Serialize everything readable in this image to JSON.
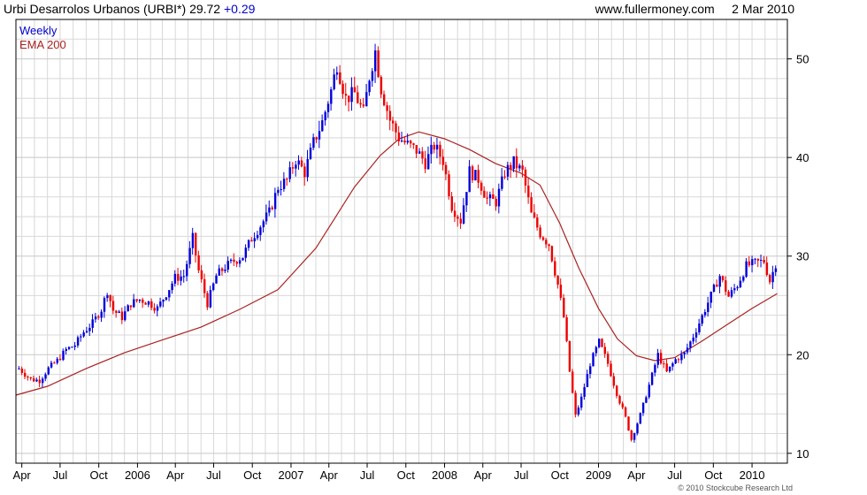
{
  "header": {
    "ticker_label": "Urbi Desarrolos Urbanos (URBI*)",
    "last_price": "29.72",
    "change": "+0.29",
    "source": "www.fullermoney.com",
    "date": "2 Mar 2010"
  },
  "copyright": "© 2010 Stockcube Research Ltd",
  "colors": {
    "up": "#0000dd",
    "down": "#ee0000",
    "ema": "#aa2222",
    "grid": "#d8d8d8",
    "frame": "#000000"
  },
  "chart_data": {
    "type": "line",
    "period": "weekly",
    "y_ticks": [
      10,
      20,
      30,
      40,
      50
    ],
    "ylim": [
      9,
      54
    ],
    "x_ticks": [
      "Apr",
      "Jul",
      "Oct",
      "2006",
      "Apr",
      "Jul",
      "Oct",
      "2007",
      "Apr",
      "Jul",
      "Oct",
      "2008",
      "Apr",
      "Jul",
      "Oct",
      "2009",
      "Apr",
      "Jul",
      "Oct",
      "2010"
    ],
    "x_tick_dates": [
      "2005-04-01",
      "2005-07-01",
      "2005-10-01",
      "2006-01-01",
      "2006-04-01",
      "2006-07-01",
      "2006-10-01",
      "2007-01-01",
      "2007-04-01",
      "2007-07-01",
      "2007-10-01",
      "2008-01-01",
      "2008-04-01",
      "2008-07-01",
      "2008-10-01",
      "2009-01-01",
      "2009-04-01",
      "2009-07-01",
      "2009-10-01",
      "2010-01-01"
    ],
    "xlim": [
      "2005-03-18",
      "2010-03-26"
    ],
    "series": [
      {
        "name": "Weekly",
        "style": "ohlc-bars",
        "points": [
          [
            "2005-03-25",
            18.6
          ],
          [
            "2005-04-22",
            17.5
          ],
          [
            "2005-05-13",
            17.4
          ],
          [
            "2005-06-03",
            18.6
          ],
          [
            "2005-06-24",
            19.4
          ],
          [
            "2005-07-15",
            20.5
          ],
          [
            "2005-08-05",
            21.0
          ],
          [
            "2005-08-26",
            22.3
          ],
          [
            "2005-09-16",
            23.2
          ],
          [
            "2005-10-07",
            24.6
          ],
          [
            "2005-10-21",
            26.5
          ],
          [
            "2005-11-04",
            24.5
          ],
          [
            "2005-11-25",
            23.8
          ],
          [
            "2005-12-16",
            25.2
          ],
          [
            "2006-01-06",
            25.6
          ],
          [
            "2006-01-27",
            25.3
          ],
          [
            "2006-02-17",
            24.7
          ],
          [
            "2006-03-10",
            26.2
          ],
          [
            "2006-03-31",
            27.8
          ],
          [
            "2006-04-21",
            28.0
          ],
          [
            "2006-05-12",
            31.8
          ],
          [
            "2006-05-26",
            28.5
          ],
          [
            "2006-06-16",
            25.2
          ],
          [
            "2006-07-07",
            28.0
          ],
          [
            "2006-07-28",
            28.9
          ],
          [
            "2006-08-18",
            29.5
          ],
          [
            "2006-09-08",
            30.0
          ],
          [
            "2006-09-29",
            31.8
          ],
          [
            "2006-10-20",
            33.1
          ],
          [
            "2006-11-10",
            34.4
          ],
          [
            "2006-12-01",
            37.0
          ],
          [
            "2006-12-22",
            37.7
          ],
          [
            "2007-01-12",
            39.8
          ],
          [
            "2007-02-02",
            38.5
          ],
          [
            "2007-02-23",
            41.5
          ],
          [
            "2007-03-16",
            43.6
          ],
          [
            "2007-04-06",
            46.8
          ],
          [
            "2007-04-20",
            49.5
          ],
          [
            "2007-05-11",
            46.0
          ],
          [
            "2007-06-01",
            46.5
          ],
          [
            "2007-06-22",
            44.5
          ],
          [
            "2007-07-06",
            48.2
          ],
          [
            "2007-07-20",
            50.8
          ],
          [
            "2007-08-03",
            47.0
          ],
          [
            "2007-08-24",
            43.8
          ],
          [
            "2007-09-14",
            42.0
          ],
          [
            "2007-10-05",
            41.3
          ],
          [
            "2007-10-26",
            40.7
          ],
          [
            "2007-11-16",
            39.5
          ],
          [
            "2007-12-07",
            41.2
          ],
          [
            "2007-12-28",
            39.7
          ],
          [
            "2008-01-18",
            35.1
          ],
          [
            "2008-02-08",
            33.6
          ],
          [
            "2008-02-29",
            38.6
          ],
          [
            "2008-03-21",
            37.8
          ],
          [
            "2008-04-11",
            35.8
          ],
          [
            "2008-05-02",
            35.5
          ],
          [
            "2008-05-23",
            38.5
          ],
          [
            "2008-06-13",
            39.5
          ],
          [
            "2008-07-04",
            38.5
          ],
          [
            "2008-07-25",
            34.2
          ],
          [
            "2008-08-15",
            32.3
          ],
          [
            "2008-09-05",
            31.2
          ],
          [
            "2008-09-26",
            27.1
          ],
          [
            "2008-10-10",
            23.8
          ],
          [
            "2008-10-24",
            18.3
          ],
          [
            "2008-11-07",
            13.8
          ],
          [
            "2008-11-21",
            15.6
          ],
          [
            "2008-12-12",
            19.1
          ],
          [
            "2009-01-02",
            21.3
          ],
          [
            "2009-01-23",
            19.1
          ],
          [
            "2009-02-13",
            16.1
          ],
          [
            "2009-03-06",
            13.6
          ],
          [
            "2009-03-20",
            11.4
          ],
          [
            "2009-04-10",
            13.9
          ],
          [
            "2009-05-01",
            16.9
          ],
          [
            "2009-05-22",
            20.0
          ],
          [
            "2009-06-12",
            18.2
          ],
          [
            "2009-07-03",
            19.5
          ],
          [
            "2009-07-24",
            20.1
          ],
          [
            "2009-08-14",
            21.9
          ],
          [
            "2009-09-04",
            23.9
          ],
          [
            "2009-09-25",
            26.0
          ],
          [
            "2009-10-16",
            28.0
          ],
          [
            "2009-11-06",
            25.9
          ],
          [
            "2009-11-27",
            27.1
          ],
          [
            "2009-12-18",
            29.0
          ],
          [
            "2010-01-08",
            29.3
          ],
          [
            "2010-01-29",
            29.5
          ],
          [
            "2010-02-12",
            27.5
          ],
          [
            "2010-03-02",
            29.72
          ]
        ]
      },
      {
        "name": "EMA 200",
        "style": "line",
        "points": [
          [
            "2005-03-18",
            15.9
          ],
          [
            "2005-06-01",
            16.8
          ],
          [
            "2005-09-01",
            18.6
          ],
          [
            "2005-12-01",
            20.2
          ],
          [
            "2006-03-01",
            21.5
          ],
          [
            "2006-06-01",
            22.8
          ],
          [
            "2006-09-01",
            24.6
          ],
          [
            "2006-12-01",
            26.6
          ],
          [
            "2007-03-01",
            30.8
          ],
          [
            "2007-06-01",
            37.0
          ],
          [
            "2007-08-01",
            40.2
          ],
          [
            "2007-09-15",
            41.9
          ],
          [
            "2007-11-01",
            42.6
          ],
          [
            "2008-01-01",
            41.9
          ],
          [
            "2008-03-01",
            40.8
          ],
          [
            "2008-05-01",
            39.4
          ],
          [
            "2008-07-01",
            38.4
          ],
          [
            "2008-08-15",
            37.2
          ],
          [
            "2008-10-01",
            33.3
          ],
          [
            "2008-11-15",
            28.8
          ],
          [
            "2009-01-01",
            24.7
          ],
          [
            "2009-02-15",
            21.6
          ],
          [
            "2009-04-01",
            19.9
          ],
          [
            "2009-05-15",
            19.4
          ],
          [
            "2009-07-01",
            19.7
          ],
          [
            "2009-09-01",
            21.3
          ],
          [
            "2009-11-01",
            23.0
          ],
          [
            "2010-01-01",
            24.7
          ],
          [
            "2010-03-02",
            26.2
          ]
        ]
      }
    ]
  }
}
